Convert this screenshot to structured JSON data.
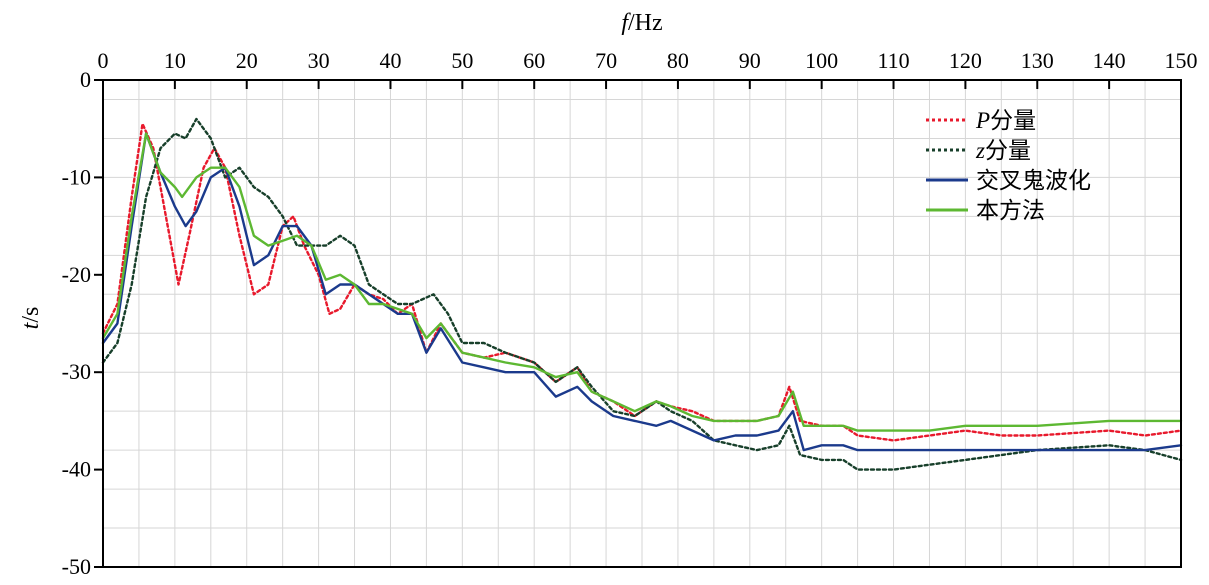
{
  "chart_data": {
    "type": "line",
    "xlabel": {
      "var": "f",
      "unit": "/Hz"
    },
    "ylabel": {
      "var": "t",
      "unit": "/s"
    },
    "xlim": [
      0,
      150
    ],
    "ylim": [
      -50,
      0
    ],
    "x_ticks": [
      "0",
      "10",
      "20",
      "30",
      "40",
      "50",
      "60",
      "70",
      "80",
      "90",
      "100",
      "110",
      "120",
      "130",
      "140",
      "150"
    ],
    "y_ticks": [
      "0",
      "-10",
      "-20",
      "-30",
      "-40",
      "-50"
    ],
    "grid": true,
    "legend_position": "top-right",
    "series": [
      {
        "name": "P分量",
        "name_italic": "P",
        "name_rest": "分量",
        "color": "#e8192c",
        "style": "dotted",
        "x": [
          0,
          2,
          4,
          5.5,
          7,
          9,
          10.5,
          12,
          14,
          15.5,
          17,
          19,
          21,
          23,
          25,
          26.5,
          28,
          30,
          31.5,
          33,
          35,
          37,
          39,
          41,
          43,
          45,
          47,
          50,
          53,
          56,
          60,
          63,
          66,
          68,
          71,
          74,
          77,
          79,
          82,
          85,
          88,
          91,
          94,
          95.5,
          97,
          100,
          103,
          105,
          110,
          115,
          120,
          125,
          130,
          140,
          145,
          150
        ],
        "values": [
          -26,
          -23,
          -12,
          -4.5,
          -7,
          -15,
          -21,
          -16,
          -9,
          -7,
          -9,
          -16,
          -22,
          -21,
          -15,
          -14,
          -17,
          -20,
          -24,
          -23.5,
          -21,
          -22,
          -22.5,
          -24,
          -23,
          -28,
          -25,
          -28,
          -28.5,
          -28,
          -29,
          -31,
          -29.5,
          -32,
          -33,
          -34.5,
          -33,
          -33.5,
          -34,
          -35,
          -35,
          -35,
          -34.5,
          -31.5,
          -35,
          -35.5,
          -35.5,
          -36.5,
          -37,
          -36.5,
          -36,
          -36.5,
          -36.5,
          -36,
          -36.5,
          -36
        ]
      },
      {
        "name": "z分量",
        "name_italic": "z",
        "name_rest": "分量",
        "color": "#173f2a",
        "style": "dotted",
        "x": [
          0,
          2,
          4,
          6,
          8,
          10,
          11.5,
          13,
          15,
          17,
          19,
          21,
          23,
          25,
          27,
          29,
          31,
          33,
          35,
          37,
          39,
          41,
          43,
          46,
          48,
          50,
          53,
          56,
          60,
          63,
          66,
          68,
          71,
          74,
          77,
          79,
          82,
          85,
          88,
          91,
          94,
          95.5,
          97,
          100,
          103,
          105,
          110,
          115,
          120,
          125,
          130,
          140,
          145,
          150
        ],
        "values": [
          -29,
          -27,
          -21,
          -12,
          -7,
          -5.5,
          -6,
          -4,
          -6,
          -10,
          -9,
          -11,
          -12,
          -14,
          -17,
          -17,
          -17,
          -16,
          -17,
          -21,
          -22,
          -23,
          -23,
          -22,
          -24,
          -27,
          -27,
          -28,
          -29,
          -31,
          -29.5,
          -31.5,
          -34,
          -34.5,
          -33,
          -34,
          -35,
          -37,
          -37.5,
          -38,
          -37.5,
          -35.5,
          -38.5,
          -39,
          -39,
          -40,
          -40,
          -39.5,
          -39,
          -38.5,
          -38,
          -37.5,
          -38,
          -39
        ]
      },
      {
        "name": "交叉鬼波化",
        "color": "#1b3a8c",
        "style": "solid",
        "x": [
          0,
          2,
          4,
          6,
          8,
          10,
          11.5,
          13,
          15,
          17,
          19,
          21,
          23,
          25,
          27,
          29,
          31,
          33,
          35,
          37,
          39,
          41,
          43,
          45,
          47,
          50,
          53,
          56,
          60,
          63,
          66,
          68,
          71,
          74,
          77,
          79,
          82,
          85,
          88,
          91,
          94,
          96,
          97.5,
          100,
          103,
          105,
          110,
          115,
          120,
          125,
          130,
          140,
          145,
          150
        ],
        "values": [
          -27,
          -25,
          -15,
          -5.5,
          -9.5,
          -13,
          -15,
          -13.5,
          -10,
          -9,
          -13,
          -19,
          -18,
          -15,
          -15,
          -17,
          -22,
          -21,
          -21,
          -22,
          -23,
          -24,
          -24,
          -28,
          -25.5,
          -29,
          -29.5,
          -30,
          -30,
          -32.5,
          -31.5,
          -33,
          -34.5,
          -35,
          -35.5,
          -35,
          -36,
          -37,
          -36.5,
          -36.5,
          -36,
          -34,
          -38,
          -37.5,
          -37.5,
          -38,
          -38,
          -38,
          -38,
          -38,
          -38,
          -38,
          -38,
          -37.5
        ]
      },
      {
        "name": "本方法",
        "color": "#5db832",
        "style": "solid",
        "x": [
          0,
          2,
          4,
          6,
          8,
          10,
          11,
          13,
          15,
          17,
          19,
          21,
          23,
          25,
          27,
          29,
          31,
          33,
          35,
          37,
          39,
          41,
          43,
          45,
          47,
          50,
          53,
          56,
          60,
          63,
          66,
          68,
          71,
          74,
          77,
          79,
          82,
          85,
          88,
          91,
          94,
          96,
          97.5,
          100,
          103,
          105,
          110,
          115,
          120,
          125,
          130,
          140,
          145,
          150
        ],
        "values": [
          -26.5,
          -24,
          -14,
          -5.5,
          -9.5,
          -11,
          -12,
          -10,
          -9,
          -9,
          -11,
          -16,
          -17,
          -16.5,
          -16,
          -17,
          -20.5,
          -20,
          -21,
          -23,
          -23,
          -23.5,
          -24,
          -26.5,
          -25,
          -28,
          -28.5,
          -29,
          -29.5,
          -30.5,
          -30,
          -32,
          -33,
          -34,
          -33,
          -33.5,
          -34.5,
          -35,
          -35,
          -35,
          -34.5,
          -32,
          -35.5,
          -35.5,
          -35.5,
          -36,
          -36,
          -36,
          -35.5,
          -35.5,
          -35.5,
          -35,
          -35,
          -35
        ]
      }
    ]
  }
}
